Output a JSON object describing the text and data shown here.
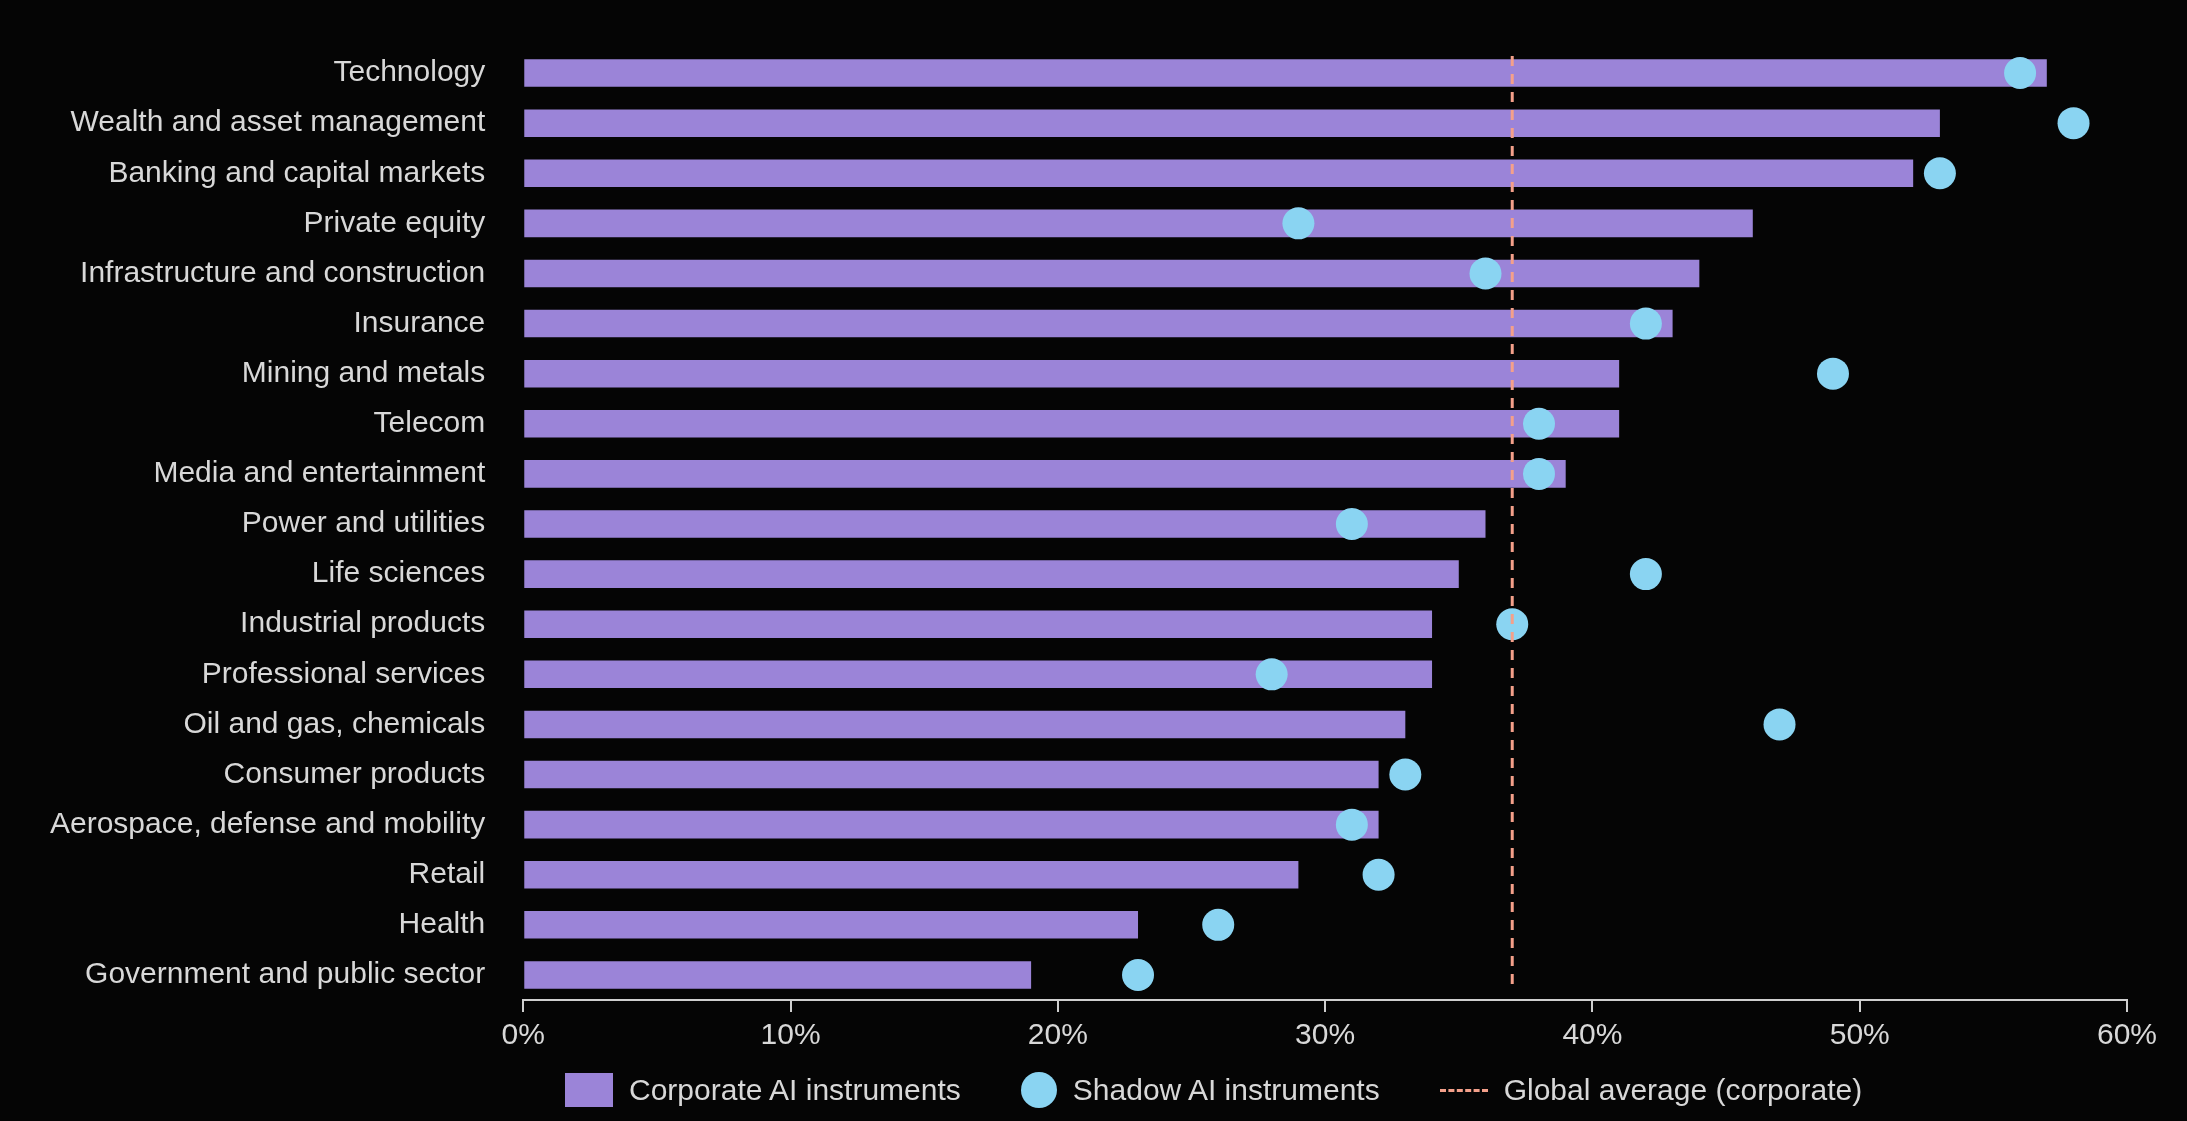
{
  "chart_data": {
    "type": "bar",
    "orientation": "horizontal",
    "categories": [
      "Technology",
      "Wealth and asset management",
      "Banking and capital markets",
      "Private equity",
      "Infrastructure and construction",
      "Insurance",
      "Mining and metals",
      "Telecom",
      "Media and entertainment",
      "Power and utilities",
      "Life sciences",
      "Industrial products",
      "Professional services",
      "Oil and gas, chemicals",
      "Consumer products",
      "Aerospace, defense and mobility",
      "Retail",
      "Health",
      "Government and public sector"
    ],
    "series": [
      {
        "name": "Corporate AI instruments",
        "color": "#9b84d8",
        "values": [
          57,
          53,
          52,
          46,
          44,
          43,
          41,
          41,
          39,
          36,
          35,
          34,
          34,
          33,
          32,
          32,
          29,
          23,
          19
        ]
      },
      {
        "name": "Shadow AI instruments",
        "type": "scatter",
        "marker": "circle",
        "color": "#8ad4f2",
        "values": [
          56,
          58,
          53,
          29,
          36,
          42,
          49,
          38,
          38,
          31,
          42,
          37,
          28,
          47,
          33,
          31,
          32,
          26,
          23
        ]
      }
    ],
    "xlim": [
      0,
      60
    ],
    "xticks": [
      {
        "value": 0,
        "label": "0%"
      },
      {
        "value": 10,
        "label": "10%"
      },
      {
        "value": 20,
        "label": "20%"
      },
      {
        "value": 30,
        "label": "30%"
      },
      {
        "value": 40,
        "label": "40%"
      },
      {
        "value": 50,
        "label": "50%"
      },
      {
        "value": 60,
        "label": "60%"
      }
    ],
    "ref_lines": [
      {
        "axis": "x",
        "value": 37,
        "label": "Global average (corporate)",
        "color": "#f4a08a",
        "line_style": "dashed"
      }
    ],
    "legend": "bottom",
    "grid": false
  }
}
